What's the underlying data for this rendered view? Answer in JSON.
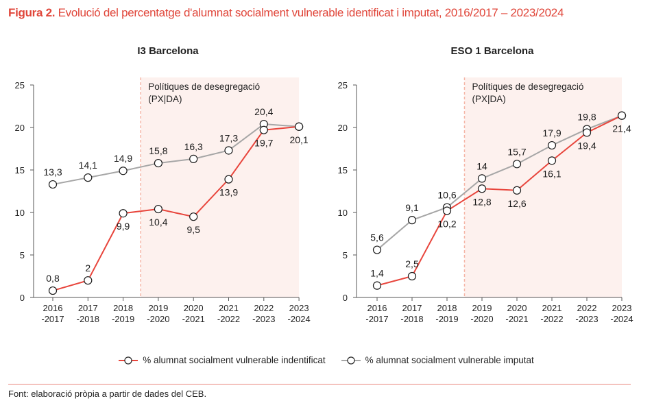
{
  "figure": {
    "label": "Figura 2.",
    "title": "Evolució del percentatge d'alumnat socialment vulnerable identificat i imputat, 2016/2017 – 2023/2024"
  },
  "colors": {
    "accent": "#e0463a",
    "identificat": "#e8453c",
    "imputat": "#a6a6a6",
    "shade": "#fdf1ee",
    "shade_border": "#f5b5a6"
  },
  "chart_data": [
    {
      "type": "line",
      "title": "I3 Barcelona",
      "categories": [
        "2016\n-2017",
        "2017\n-2018",
        "2018\n-2019",
        "2019\n-2020",
        "2020\n-2021",
        "2021\n-2022",
        "2022\n-2023",
        "2023\n-2024"
      ],
      "category_lines": [
        [
          "2016",
          "-2017"
        ],
        [
          "2017",
          "-2018"
        ],
        [
          "2018",
          "-2019"
        ],
        [
          "2019",
          "-2020"
        ],
        [
          "2020",
          "-2021"
        ],
        [
          "2021",
          "-2022"
        ],
        [
          "2022",
          "-2023"
        ],
        [
          "2023",
          "-2024"
        ]
      ],
      "series": [
        {
          "name": "% alumnat socialment vulnerable indentificat",
          "key": "identificat",
          "values": [
            0.8,
            2,
            9.9,
            10.4,
            9.5,
            13.9,
            19.7,
            20.1
          ],
          "labels": [
            "0,8",
            "2",
            "9,9",
            "10,4",
            "9,5",
            "13,9",
            "19,7",
            "20,1"
          ],
          "label_pos": [
            "above",
            "above",
            "below",
            "below",
            "below",
            "below",
            "below",
            "below"
          ]
        },
        {
          "name": "% alumnat socialment vulnerable imputat",
          "key": "imputat",
          "values": [
            13.3,
            14.1,
            14.9,
            15.8,
            16.3,
            17.3,
            20.4,
            20.1
          ],
          "labels": [
            "13,3",
            "14,1",
            "14,9",
            "15,8",
            "16,3",
            "17,3",
            "20,4",
            ""
          ],
          "label_pos": [
            "above",
            "above",
            "above",
            "above",
            "above",
            "above",
            "above",
            "none"
          ]
        }
      ],
      "yticks": [
        0,
        5,
        10,
        15,
        20,
        25
      ],
      "ylim": [
        0,
        25
      ],
      "annotation": {
        "lines": [
          "Polítiques de desegregació",
          "(PX|DA)"
        ],
        "start_between": [
          2,
          3
        ],
        "end_category": 7
      },
      "grid": false
    },
    {
      "type": "line",
      "title": "ESO 1 Barcelona",
      "categories": [
        "2016\n-2017",
        "2017\n-2018",
        "2018\n-2019",
        "2019\n-2020",
        "2020\n-2021",
        "2021\n-2022",
        "2022\n-2023",
        "2023\n-2024"
      ],
      "category_lines": [
        [
          "2016",
          "-2017"
        ],
        [
          "2017",
          "-2018"
        ],
        [
          "2018",
          "-2019"
        ],
        [
          "2019",
          "-2020"
        ],
        [
          "2020",
          "-2021"
        ],
        [
          "2021",
          "-2022"
        ],
        [
          "2022",
          "-2023"
        ],
        [
          "2023",
          "-2024"
        ]
      ],
      "series": [
        {
          "name": "% alumnat socialment vulnerable indentificat",
          "key": "identificat",
          "values": [
            1.4,
            2.5,
            10.2,
            12.8,
            12.6,
            16.1,
            19.4,
            21.4
          ],
          "labels": [
            "1,4",
            "2,5",
            "10,2",
            "12,8",
            "12,6",
            "16,1",
            "19,4",
            "21,4"
          ],
          "label_pos": [
            "above",
            "above",
            "below",
            "below",
            "below",
            "below",
            "below",
            "below"
          ]
        },
        {
          "name": "% alumnat socialment vulnerable imputat",
          "key": "imputat",
          "values": [
            5.6,
            9.1,
            10.6,
            14,
            15.7,
            17.9,
            19.8,
            21.4
          ],
          "labels": [
            "5,6",
            "9,1",
            "10,6",
            "14",
            "15,7",
            "17,9",
            "19,8",
            ""
          ],
          "label_pos": [
            "above",
            "above",
            "above",
            "above",
            "above",
            "above",
            "above",
            "none"
          ]
        }
      ],
      "yticks": [
        0,
        5,
        10,
        15,
        20,
        25
      ],
      "ylim": [
        0,
        25
      ],
      "annotation": {
        "lines": [
          "Polítiques de desegregació",
          "(PX|DA)"
        ],
        "start_between": [
          2,
          3
        ],
        "end_category": 7
      },
      "grid": false
    }
  ],
  "legend": {
    "placement": "bottom-center",
    "items": [
      {
        "key": "identificat",
        "label": "% alumnat socialment vulnerable indentificat"
      },
      {
        "key": "imputat",
        "label": "% alumnat socialment vulnerable imputat"
      }
    ]
  },
  "source": "Font: elaboració pròpia a partir de dades del CEB."
}
